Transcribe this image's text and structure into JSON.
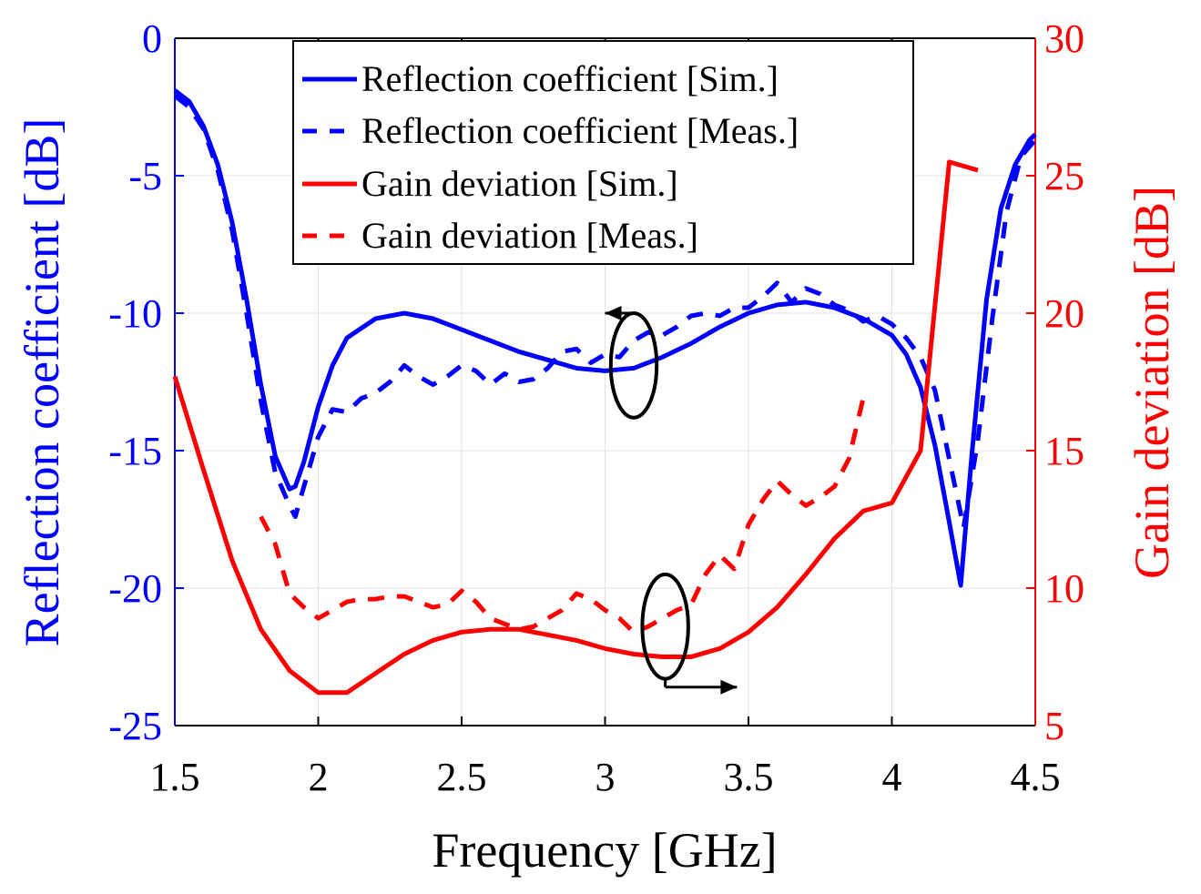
{
  "chart_data": {
    "type": "line",
    "xlabel": "Frequency [GHz]",
    "ylabel_left": "Reflection coefficient [dB]",
    "ylabel_right": "Gain deviation [dB]",
    "xlim": [
      1.5,
      4.5
    ],
    "ylim_left": [
      -25,
      0
    ],
    "ylim_right": [
      5,
      30
    ],
    "xticks": [
      "1.5",
      "2",
      "2.5",
      "3",
      "3.5",
      "4",
      "4.5"
    ],
    "yticks_left": [
      "0",
      "-5",
      "-10",
      "-15",
      "-20",
      "-25"
    ],
    "yticks_right": [
      "30",
      "25",
      "20",
      "15",
      "10",
      "5"
    ],
    "grid": true,
    "legend_position": "top-center",
    "colors": {
      "left_axis": "#0000ff",
      "right_axis": "#ff0000",
      "annotation": "#000000"
    },
    "series": [
      {
        "name": "Reflection coefficient [Sim.]",
        "axis": "left",
        "color": "#0000ff",
        "dash": "solid",
        "x": [
          1.5,
          1.55,
          1.6,
          1.65,
          1.7,
          1.75,
          1.8,
          1.85,
          1.9,
          1.92,
          1.95,
          2.0,
          2.05,
          2.1,
          2.2,
          2.3,
          2.4,
          2.5,
          2.6,
          2.7,
          2.8,
          2.9,
          3.0,
          3.1,
          3.2,
          3.3,
          3.4,
          3.5,
          3.6,
          3.7,
          3.8,
          3.9,
          4.0,
          4.05,
          4.1,
          4.15,
          4.2,
          4.24,
          4.28,
          4.33,
          4.38,
          4.43,
          4.48,
          4.5
        ],
        "y": [
          -1.9,
          -2.3,
          -3.2,
          -4.6,
          -6.7,
          -9.5,
          -12.6,
          -15.2,
          -16.4,
          -16.3,
          -15.4,
          -13.4,
          -11.9,
          -10.9,
          -10.2,
          -10.0,
          -10.2,
          -10.6,
          -11.0,
          -11.4,
          -11.7,
          -12.0,
          -12.1,
          -12.0,
          -11.6,
          -11.1,
          -10.5,
          -10.0,
          -9.7,
          -9.6,
          -9.8,
          -10.2,
          -10.8,
          -11.5,
          -12.7,
          -14.8,
          -17.6,
          -19.9,
          -15.0,
          -9.5,
          -6.2,
          -4.6,
          -3.7,
          -3.5
        ]
      },
      {
        "name": "Reflection coefficient [Meas.]",
        "axis": "left",
        "color": "#0000ff",
        "dash": "dashed",
        "x": [
          1.5,
          1.55,
          1.6,
          1.65,
          1.7,
          1.75,
          1.8,
          1.85,
          1.9,
          1.92,
          1.95,
          2.0,
          2.05,
          2.1,
          2.15,
          2.2,
          2.25,
          2.3,
          2.35,
          2.4,
          2.45,
          2.5,
          2.55,
          2.6,
          2.65,
          2.7,
          2.75,
          2.8,
          2.85,
          2.9,
          2.95,
          3.0,
          3.05,
          3.1,
          3.15,
          3.2,
          3.25,
          3.3,
          3.35,
          3.4,
          3.45,
          3.5,
          3.55,
          3.6,
          3.65,
          3.7,
          3.75,
          3.8,
          3.85,
          3.9,
          3.95,
          4.0,
          4.05,
          4.1,
          4.15,
          4.2,
          4.25,
          4.3,
          4.35,
          4.4,
          4.45,
          4.5
        ],
        "y": [
          -2.1,
          -2.5,
          -3.3,
          -4.8,
          -7.0,
          -10.0,
          -13.2,
          -15.8,
          -17.0,
          -17.4,
          -16.3,
          -14.5,
          -13.5,
          -13.6,
          -13.1,
          -12.9,
          -12.5,
          -11.9,
          -12.3,
          -12.6,
          -12.3,
          -11.9,
          -12.1,
          -12.6,
          -12.2,
          -12.5,
          -12.4,
          -12.0,
          -11.4,
          -11.3,
          -11.8,
          -11.5,
          -11.6,
          -11.0,
          -10.7,
          -10.8,
          -10.5,
          -10.1,
          -10.0,
          -10.1,
          -9.8,
          -9.8,
          -9.4,
          -8.9,
          -9.6,
          -9.1,
          -9.3,
          -9.7,
          -9.9,
          -10.3,
          -10.1,
          -10.4,
          -10.9,
          -11.6,
          -12.8,
          -15.3,
          -17.8,
          -14.6,
          -10.2,
          -6.3,
          -4.3,
          -3.7
        ]
      },
      {
        "name": "Gain deviation [Sim.]",
        "axis": "right",
        "color": "#ff0000",
        "dash": "solid",
        "x": [
          1.5,
          1.6,
          1.7,
          1.8,
          1.9,
          2.0,
          2.1,
          2.2,
          2.3,
          2.4,
          2.5,
          2.6,
          2.7,
          2.8,
          2.9,
          3.0,
          3.1,
          3.2,
          3.3,
          3.4,
          3.5,
          3.6,
          3.7,
          3.8,
          3.9,
          4.0,
          4.1,
          4.2,
          4.3
        ],
        "y": [
          17.7,
          14.3,
          11.0,
          8.5,
          7.0,
          6.2,
          6.2,
          6.9,
          7.6,
          8.1,
          8.4,
          8.5,
          8.5,
          8.3,
          8.1,
          7.8,
          7.6,
          7.5,
          7.5,
          7.8,
          8.4,
          9.3,
          10.5,
          11.8,
          12.8,
          13.1,
          15.0,
          25.5,
          25.2
        ]
      },
      {
        "name": "Gain deviation [Meas.]",
        "axis": "right",
        "color": "#ff0000",
        "dash": "dashed",
        "x": [
          1.8,
          1.85,
          1.9,
          1.95,
          2.0,
          2.05,
          2.1,
          2.15,
          2.2,
          2.25,
          2.3,
          2.35,
          2.4,
          2.45,
          2.5,
          2.55,
          2.6,
          2.65,
          2.7,
          2.75,
          2.8,
          2.85,
          2.9,
          2.95,
          3.0,
          3.05,
          3.1,
          3.15,
          3.2,
          3.25,
          3.3,
          3.35,
          3.4,
          3.45,
          3.5,
          3.55,
          3.6,
          3.65,
          3.7,
          3.75,
          3.8,
          3.85,
          3.9
        ],
        "y": [
          12.6,
          11.6,
          9.8,
          9.3,
          8.9,
          9.2,
          9.5,
          9.6,
          9.6,
          9.7,
          9.7,
          9.5,
          9.3,
          9.4,
          9.9,
          9.5,
          8.9,
          8.7,
          8.5,
          8.6,
          8.9,
          9.2,
          9.8,
          9.6,
          9.2,
          8.9,
          8.4,
          8.6,
          8.9,
          9.2,
          9.4,
          10.5,
          11.2,
          10.7,
          12.3,
          13.2,
          13.9,
          13.4,
          13.0,
          13.3,
          13.7,
          14.7,
          16.9
        ]
      }
    ],
    "annotations": [
      {
        "shape": "ellipse",
        "cx": 3.1,
        "cy": -11.9,
        "rx": 0.08,
        "ry": 1.9,
        "arrow_to_x": 3.0,
        "arrow_y": -10.0,
        "arrow_direction": "left",
        "target_axis": "left"
      },
      {
        "shape": "ellipse",
        "cx": 3.21,
        "cy": 8.6,
        "rx": 0.08,
        "ry": 1.9,
        "arrow_to_x": 3.46,
        "arrow_y": 6.4,
        "arrow_direction": "right",
        "target_axis": "right"
      }
    ]
  }
}
